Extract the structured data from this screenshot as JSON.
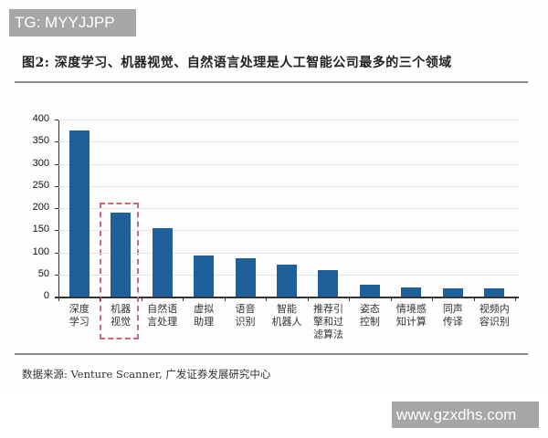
{
  "watermark_top": "TG: MYYJJPP",
  "watermark_bottom": "www.gzxdhs.com",
  "figure": {
    "title": "图2: 深度学习、机器视觉、自然语言处理是人工智能公司最多的三个领域",
    "source": "数据来源: Venture Scanner, 广发证券发展研究中心"
  },
  "chart_data": {
    "type": "bar",
    "title": "图2: 深度学习、机器视觉、自然语言处理是人工智能公司最多的三个领域",
    "xlabel": "",
    "ylabel": "",
    "ylim": [
      0,
      400
    ],
    "yticks": [
      0,
      50,
      100,
      150,
      200,
      250,
      300,
      350,
      400
    ],
    "grid": true,
    "legend": null,
    "categories": [
      "深度学习",
      "机器视觉",
      "自然语言处理",
      "虚拟助理",
      "语音识别",
      "智能机器人",
      "推荐引擎和过滤算法",
      "姿态控制",
      "情境感知计算",
      "同声传译",
      "视频内容识别"
    ],
    "category_lines": [
      [
        "深度",
        "学习"
      ],
      [
        "机器",
        "视觉"
      ],
      [
        "自然语",
        "言处理"
      ],
      [
        "虚拟",
        "助理"
      ],
      [
        "语音",
        "识别"
      ],
      [
        "智能",
        "机器人"
      ],
      [
        "推荐引",
        "擎和过",
        "滤算法"
      ],
      [
        "姿态",
        "控制"
      ],
      [
        "情境感",
        "知计算"
      ],
      [
        "同声",
        "传译"
      ],
      [
        "视频内",
        "容识别"
      ]
    ],
    "values": [
      375,
      190,
      155,
      93,
      87,
      72,
      60,
      27,
      20,
      18,
      18
    ],
    "bar_color": "#1f5f9a",
    "annotations": [
      {
        "type": "dashed-box",
        "target": "机器视觉",
        "color": "#c86a78"
      }
    ]
  }
}
